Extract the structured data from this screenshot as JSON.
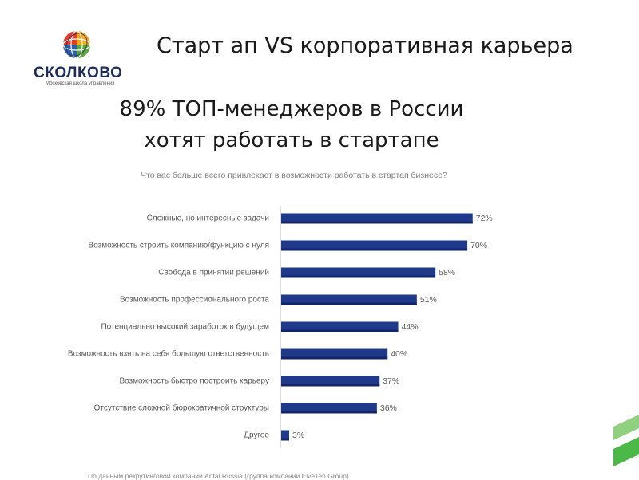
{
  "logo": {
    "name": "СКОЛКОВО",
    "subtitle": "Московская школа управления"
  },
  "slide_title": "Старт ап VS корпоративная карьера",
  "headline": {
    "line1": "89% ТОП-менеджеров в России",
    "line2": "хотят работать в стартапе"
  },
  "source_note": "По данным рекрутинговой компании Antal Russia (группа компаний ElveTen Group)",
  "colors": {
    "bar": "#1f3a8a",
    "bar_dark": "#14246b",
    "accent_green": "#4cb848",
    "accent_green_light": "#8fd17f"
  },
  "chart_data": {
    "type": "bar",
    "orientation": "horizontal",
    "title": "Что вас больше всего привлекает в возможности работать в стартап бизнесе?",
    "categories": [
      "Сложные, но интересные задачи",
      "Возможность строить компанию/функцию с нуля",
      "Свобода в принятии решений",
      "Возможность профессионального роста",
      "Потенциально высокий заработок в будущем",
      "Возможность взять на себя большую ответственность",
      "Возможность быстро построить карьеру",
      "Отсутствие сложной бюрократичной структуры",
      "Другое"
    ],
    "values": [
      72,
      70,
      58,
      51,
      44,
      40,
      37,
      36,
      3
    ],
    "value_labels": [
      "72%",
      "70%",
      "58%",
      "51%",
      "44%",
      "40%",
      "37%",
      "36%",
      "3%"
    ],
    "xlim": [
      0,
      100
    ],
    "grid": false,
    "legend": "none"
  }
}
